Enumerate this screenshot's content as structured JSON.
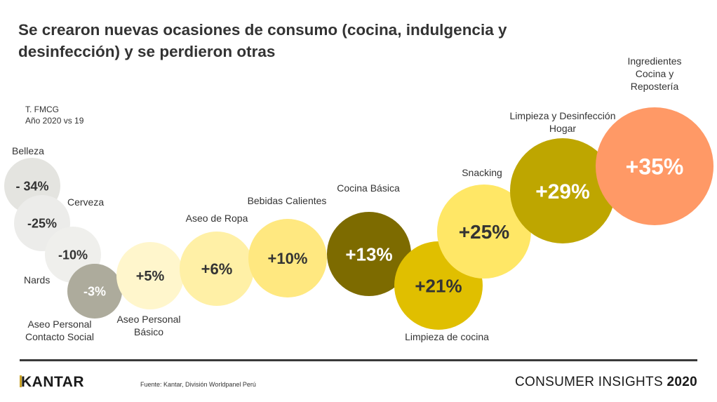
{
  "header": {
    "title_line1": "Se crearon nuevas ocasiones de consumo (cocina, indulgencia y",
    "title_line2": "desinfección) y se perdieron otras"
  },
  "subtitle": {
    "line1": "T. FMCG",
    "line2": "Año 2020 vs 19"
  },
  "chart_data": {
    "type": "bubble",
    "title": "Se crearon nuevas ocasiones de consumo (cocina, indulgencia y desinfección) y se perdieron otras",
    "subtitle": "T. FMCG — Año 2020 vs 19",
    "unit": "% change 2020 vs 2019",
    "categories": [
      "Belleza",
      "Cerveza",
      "Nards",
      "Aseo Personal Contacto Social",
      "Aseo Personal Básico",
      "Aseo de Ropa",
      "Bebidas Calientes",
      "Cocina Básica",
      "Limpieza de cocina",
      "Snacking",
      "Limpieza y Desinfección Hogar",
      "Ingredientes Cocina y Repostería"
    ],
    "values": [
      -34,
      -25,
      -10,
      -3,
      5,
      6,
      10,
      13,
      21,
      25,
      29,
      35
    ],
    "points": [
      {
        "label": "Belleza",
        "label_lines": [
          "Belleza"
        ],
        "value": -34,
        "display": "- 34%",
        "color": "#e4e4e0",
        "text_color": "#333333",
        "label_pos": "above"
      },
      {
        "label": "Cerveza",
        "label_lines": [
          "Cerveza"
        ],
        "value": -25,
        "display": "-25%",
        "color": "#ececea",
        "text_color": "#333333",
        "label_pos": "right"
      },
      {
        "label": "Nards",
        "label_lines": [
          "Nards"
        ],
        "value": -10,
        "display": "-10%",
        "color": "#efefec",
        "text_color": "#333333",
        "label_pos": "left"
      },
      {
        "label": "Aseo Personal Contacto Social",
        "label_lines": [
          "Aseo Personal",
          "Contacto Social"
        ],
        "value": -3,
        "display": "-3%",
        "color": "#adab9c",
        "text_color": "#ffffff",
        "label_pos": "below"
      },
      {
        "label": "Aseo Personal Básico",
        "label_lines": [
          "Aseo Personal",
          "Básico"
        ],
        "value": 5,
        "display": "+5%",
        "color": "#fff6cc",
        "text_color": "#333333",
        "label_pos": "below"
      },
      {
        "label": "Aseo de Ropa",
        "label_lines": [
          "Aseo de Ropa"
        ],
        "value": 6,
        "display": "+6%",
        "color": "#fff0a6",
        "text_color": "#333333",
        "label_pos": "above"
      },
      {
        "label": "Bebidas Calientes",
        "label_lines": [
          "Bebidas Calientes"
        ],
        "value": 10,
        "display": "+10%",
        "color": "#ffe880",
        "text_color": "#333333",
        "label_pos": "above"
      },
      {
        "label": "Cocina Básica",
        "label_lines": [
          "Cocina Básica"
        ],
        "value": 13,
        "display": "+13%",
        "color": "#7d6b00",
        "text_color": "#ffffff",
        "label_pos": "above"
      },
      {
        "label": "Limpieza de cocina",
        "label_lines": [
          "Limpieza de cocina"
        ],
        "value": 21,
        "display": "+21%",
        "color": "#e0bf00",
        "text_color": "#333333",
        "label_pos": "below"
      },
      {
        "label": "Snacking",
        "label_lines": [
          "Snacking"
        ],
        "value": 25,
        "display": "+25%",
        "color": "#ffe766",
        "text_color": "#333333",
        "label_pos": "above"
      },
      {
        "label": "Limpieza y Desinfección Hogar",
        "label_lines": [
          "Limpieza y Desinfección",
          "Hogar"
        ],
        "value": 29,
        "display": "+29%",
        "color": "#bea600",
        "text_color": "#ffffff",
        "label_pos": "above"
      },
      {
        "label": "Ingredientes Cocina y Repostería",
        "label_lines": [
          "Ingredientes",
          "Cocina y",
          "Repostería"
        ],
        "value": 35,
        "display": "+35%",
        "color": "#ff9966",
        "text_color": "#ffffff",
        "label_pos": "above"
      }
    ]
  },
  "footer": {
    "logo": "KANTAR",
    "source": "Fuente: Kantar, División Worldpanel Perú",
    "brand_text": "CONSUMER INSIGHTS",
    "brand_year": "2020"
  }
}
